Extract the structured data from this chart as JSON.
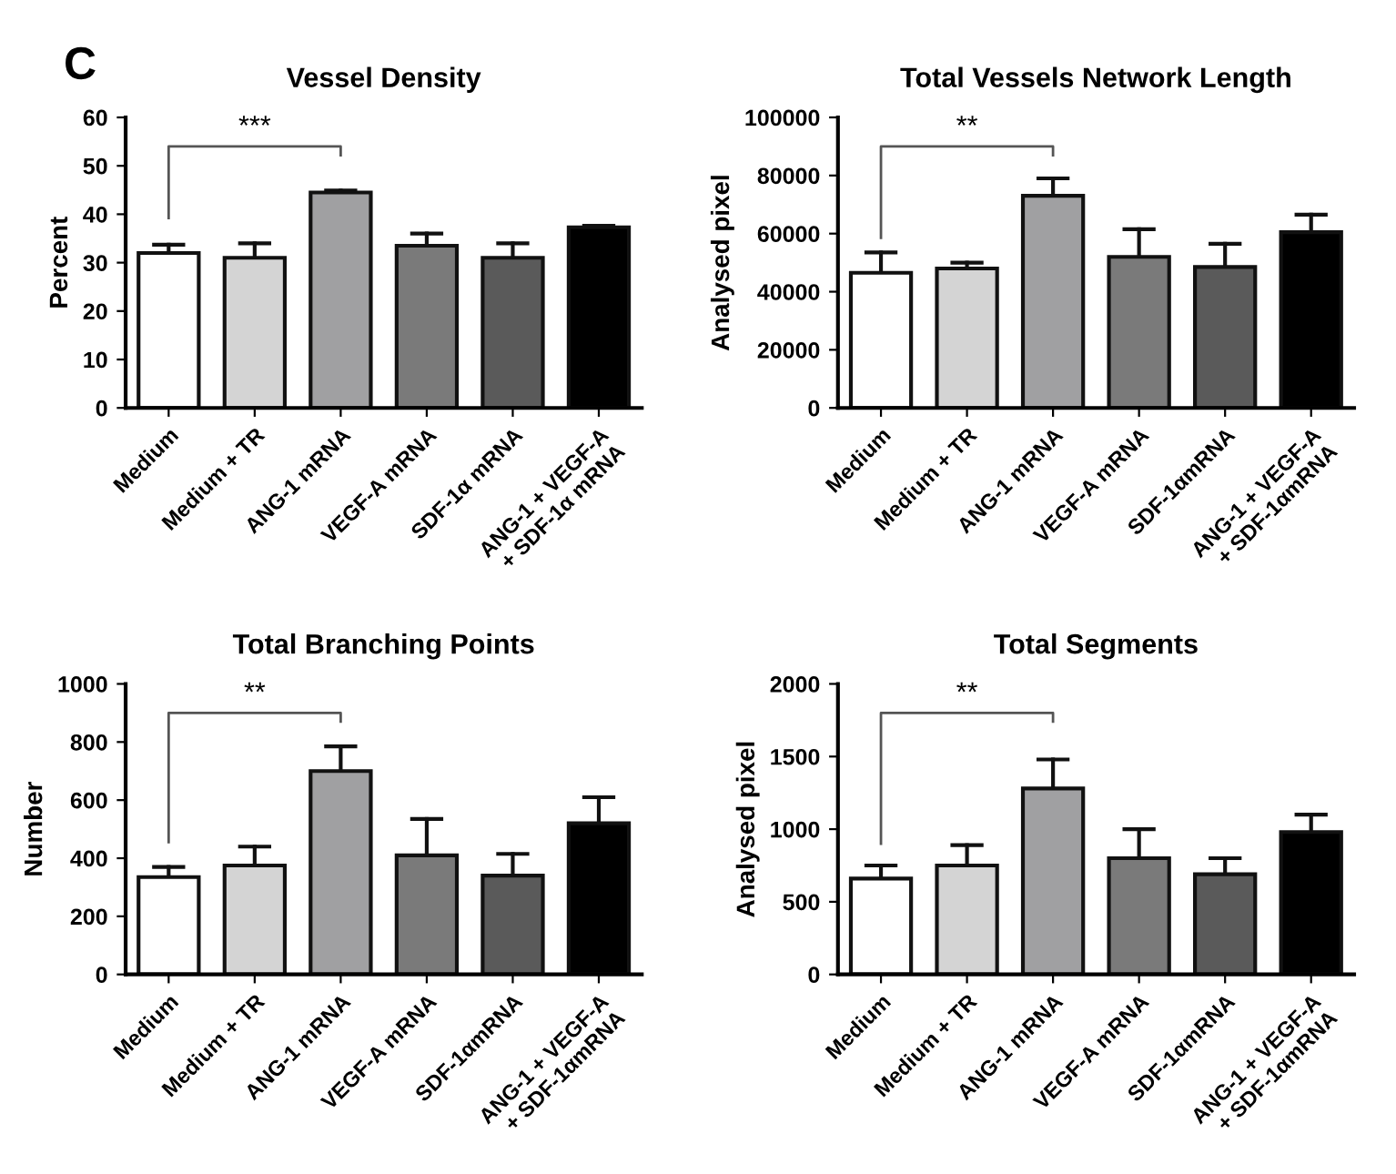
{
  "chart_data": [
    {
      "type": "bar",
      "title": "Vessel Density",
      "ylabel": "Percent",
      "annotations": [
        "C",
        "***"
      ],
      "categories": [
        "Medium",
        "Medium + TR",
        "ANG-1 mRNA",
        "VEGF-A mRNA",
        "SDF-1α mRNA",
        "ANG-1 + VEGF-A\n+ SDF-1α mRNA"
      ],
      "values": [
        32,
        31,
        44.5,
        33.5,
        31,
        37.3
      ],
      "errors": [
        [
          32,
          33.7
        ],
        [
          31,
          34
        ],
        [
          44.5,
          44.9
        ],
        [
          33.5,
          36
        ],
        [
          31,
          34
        ],
        [
          37.3,
          37.6
        ]
      ],
      "colors": [
        "#ffffff",
        "#d4d4d4",
        "#a0a0a2",
        "#7a7a7a",
        "#5a5a5a",
        "#000000"
      ],
      "ylim": [
        0,
        60
      ],
      "yticks": [
        0,
        10,
        20,
        30,
        40,
        50,
        60
      ],
      "grid": false,
      "legend": false
    },
    {
      "type": "bar",
      "title": "Total Vessels Network Length",
      "ylabel": "Analysed pixel",
      "annotations": [
        "**"
      ],
      "categories": [
        "Medium",
        "Medium + TR",
        "ANG-1 mRNA",
        "VEGF-A mRNA",
        "SDF-1αmRNA",
        "ANG-1 + VEGF-A\n+ SDF-1αmRNA"
      ],
      "values": [
        46500,
        48000,
        73000,
        52000,
        48500,
        60500
      ],
      "errors": [
        [
          46500,
          53500
        ],
        [
          48000,
          50000
        ],
        [
          73000,
          79000
        ],
        [
          52000,
          61500
        ],
        [
          48500,
          56500
        ],
        [
          60500,
          66500
        ]
      ],
      "colors": [
        "#ffffff",
        "#d4d4d4",
        "#a0a0a2",
        "#7a7a7a",
        "#5a5a5a",
        "#000000"
      ],
      "ylim": [
        0,
        100000
      ],
      "yticks": [
        0,
        20000,
        40000,
        60000,
        80000,
        100000
      ],
      "grid": false,
      "legend": false
    },
    {
      "type": "bar",
      "title": "Total Branching Points",
      "ylabel": "Number",
      "annotations": [
        "**"
      ],
      "categories": [
        "Medium",
        "Medium + TR",
        "ANG-1 mRNA",
        "VEGF-A mRNA",
        "SDF-1αmRNA",
        "ANG-1 + VEGF-A\n+ SDF-1αmRNA"
      ],
      "values": [
        335,
        375,
        700,
        410,
        340,
        520
      ],
      "errors": [
        [
          335,
          370
        ],
        [
          375,
          440
        ],
        [
          700,
          785
        ],
        [
          410,
          535
        ],
        [
          340,
          415
        ],
        [
          520,
          610
        ]
      ],
      "colors": [
        "#ffffff",
        "#d4d4d4",
        "#a0a0a2",
        "#7a7a7a",
        "#5a5a5a",
        "#000000"
      ],
      "ylim": [
        0,
        1000
      ],
      "yticks": [
        0,
        200,
        400,
        600,
        800,
        1000
      ],
      "grid": false,
      "legend": false
    },
    {
      "type": "bar",
      "title": "Total Segments",
      "ylabel": "Analysed pixel",
      "annotations": [
        "**"
      ],
      "categories": [
        "Medium",
        "Medium + TR",
        "ANG-1 mRNA",
        "VEGF-A mRNA",
        "SDF-1αmRNA",
        "ANG-1 + VEGF-A\n+ SDF-1αmRNA"
      ],
      "values": [
        660,
        750,
        1280,
        800,
        690,
        980
      ],
      "errors": [
        [
          660,
          750
        ],
        [
          750,
          890
        ],
        [
          1280,
          1480
        ],
        [
          800,
          1000
        ],
        [
          690,
          800
        ],
        [
          980,
          1100
        ]
      ],
      "colors": [
        "#ffffff",
        "#d4d4d4",
        "#a0a0a2",
        "#7a7a7a",
        "#5a5a5a",
        "#000000"
      ],
      "ylim": [
        0,
        2000
      ],
      "yticks": [
        0,
        500,
        1000,
        1500,
        2000
      ],
      "grid": false,
      "legend": false
    }
  ]
}
